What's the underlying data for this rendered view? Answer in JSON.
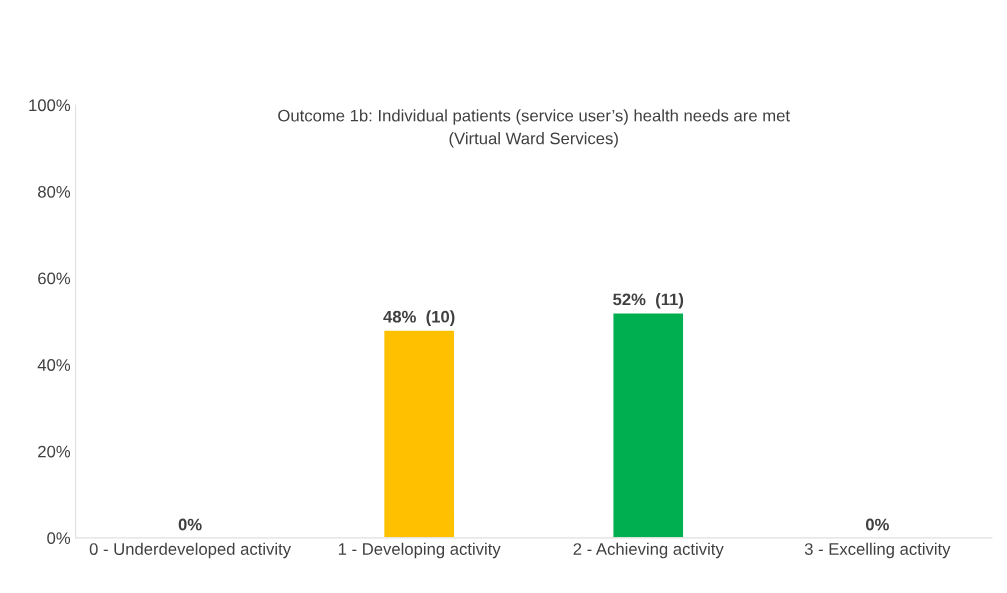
{
  "chart_data": {
    "type": "bar",
    "title": "Outcome 1b: Individual patients (service user’s) health needs are met\n(Virtual Ward Services)",
    "categories": [
      "0 - Underdeveloped activity",
      "1 - Developing activity",
      "2 - Achieving activity",
      "3 - Excelling activity"
    ],
    "values": [
      0,
      48,
      52,
      0
    ],
    "colors": [
      null,
      "#ffc000",
      "#00b050",
      null
    ],
    "value_labels": [
      "0%",
      "48%  (10)",
      "52%  (11)",
      "0%"
    ],
    "ylim": [
      0,
      100
    ],
    "yticks": [
      {
        "value": 0,
        "label": "0%"
      },
      {
        "value": 20,
        "label": "20%"
      },
      {
        "value": 40,
        "label": "40%"
      },
      {
        "value": 60,
        "label": "60%"
      },
      {
        "value": 80,
        "label": "80%"
      },
      {
        "value": 100,
        "label": "100%"
      }
    ],
    "grid": false,
    "legend": false
  }
}
